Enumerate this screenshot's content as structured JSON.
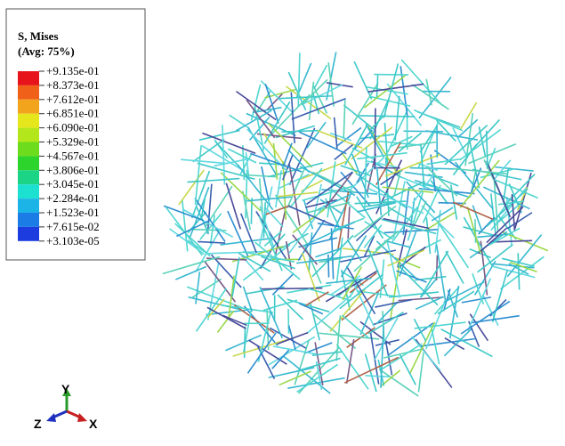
{
  "legend": {
    "title": "S, Mises",
    "subtitle": "(Avg: 75%)",
    "labels": [
      "+9.135e-01",
      "+8.373e-01",
      "+7.612e-01",
      "+6.851e-01",
      "+6.090e-01",
      "+5.329e-01",
      "+4.567e-01",
      "+3.806e-01",
      "+3.045e-01",
      "+2.284e-01",
      "+1.523e-01",
      "+7.615e-02",
      "+3.103e-05"
    ]
  },
  "triad": {
    "y": "Y",
    "z": "Z",
    "x": "X"
  }
}
